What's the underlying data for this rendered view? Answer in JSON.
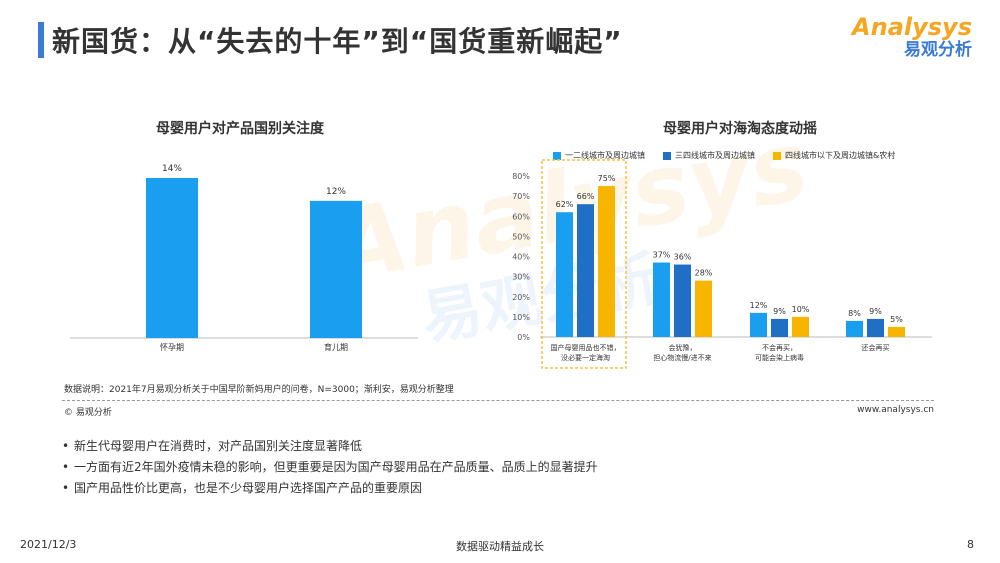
{
  "header": {
    "title": "新国货：从“失去的十年”到“国货重新崛起”",
    "brand_en": "Analysys",
    "brand_cn": "易观分析"
  },
  "watermark": {
    "en": "Analysys",
    "cn": "易观分析"
  },
  "colors": {
    "accent_blue": "#1a9ff0",
    "dark_blue": "#1f6fc5",
    "orange": "#f7b500",
    "highlight_border": "#f5c242"
  },
  "chart_data": [
    {
      "type": "bar",
      "title": "母婴用户对产品国别关注度",
      "categories": [
        "怀孕期",
        "育儿期"
      ],
      "values": [
        14,
        12
      ],
      "value_labels": [
        "14%",
        "12%"
      ],
      "ylim": [
        0,
        16
      ]
    },
    {
      "type": "bar",
      "title": "母婴用户对海淘态度动摇",
      "categories": [
        [
          "国产母婴用品也不错，",
          "没必要一定海淘"
        ],
        [
          "会犹豫，",
          "担心物流慢/进不来"
        ],
        [
          "不会再买，",
          "可能会染上病毒"
        ],
        [
          "还会再买"
        ]
      ],
      "series": [
        {
          "name": "一二线城市及周边城镇",
          "values": [
            62,
            37,
            12,
            8
          ],
          "labels": [
            "62%",
            "37%",
            "12%",
            "8%"
          ]
        },
        {
          "name": "三四线城市及周边城镇",
          "values": [
            66,
            36,
            9,
            9
          ],
          "labels": [
            "66%",
            "36%",
            "9%",
            "9%"
          ]
        },
        {
          "name": "四线城市以下及周边城镇&农村",
          "values": [
            75,
            28,
            10,
            5
          ],
          "labels": [
            "75%",
            "28%",
            "10%",
            "5%"
          ]
        }
      ],
      "yticks": [
        "0%",
        "10%",
        "20%",
        "30%",
        "40%",
        "50%",
        "60%",
        "70%",
        "80%"
      ],
      "ylim": [
        0,
        80
      ],
      "highlight_category": 0
    }
  ],
  "note": "数据说明：2021年7月易观分析关于中国早阶新妈用户的问卷，N=3000；渐利安，易观分析整理",
  "copyright": "© 易观分析",
  "website": "www.analysys.cn",
  "bullets": [
    "新生代母婴用户在消费时，对产品国别关注度显著降低",
    "一方面有近2年国外疫情未稳的影响，但更重要是因为国产母婴用品在产品质量、品质上的显著提升",
    "国产用品性价比更高，也是不少母婴用户选择国产产品的重要原因"
  ],
  "footer": {
    "date": "2021/12/3",
    "center": "数据驱动精益成长",
    "page": "8"
  }
}
